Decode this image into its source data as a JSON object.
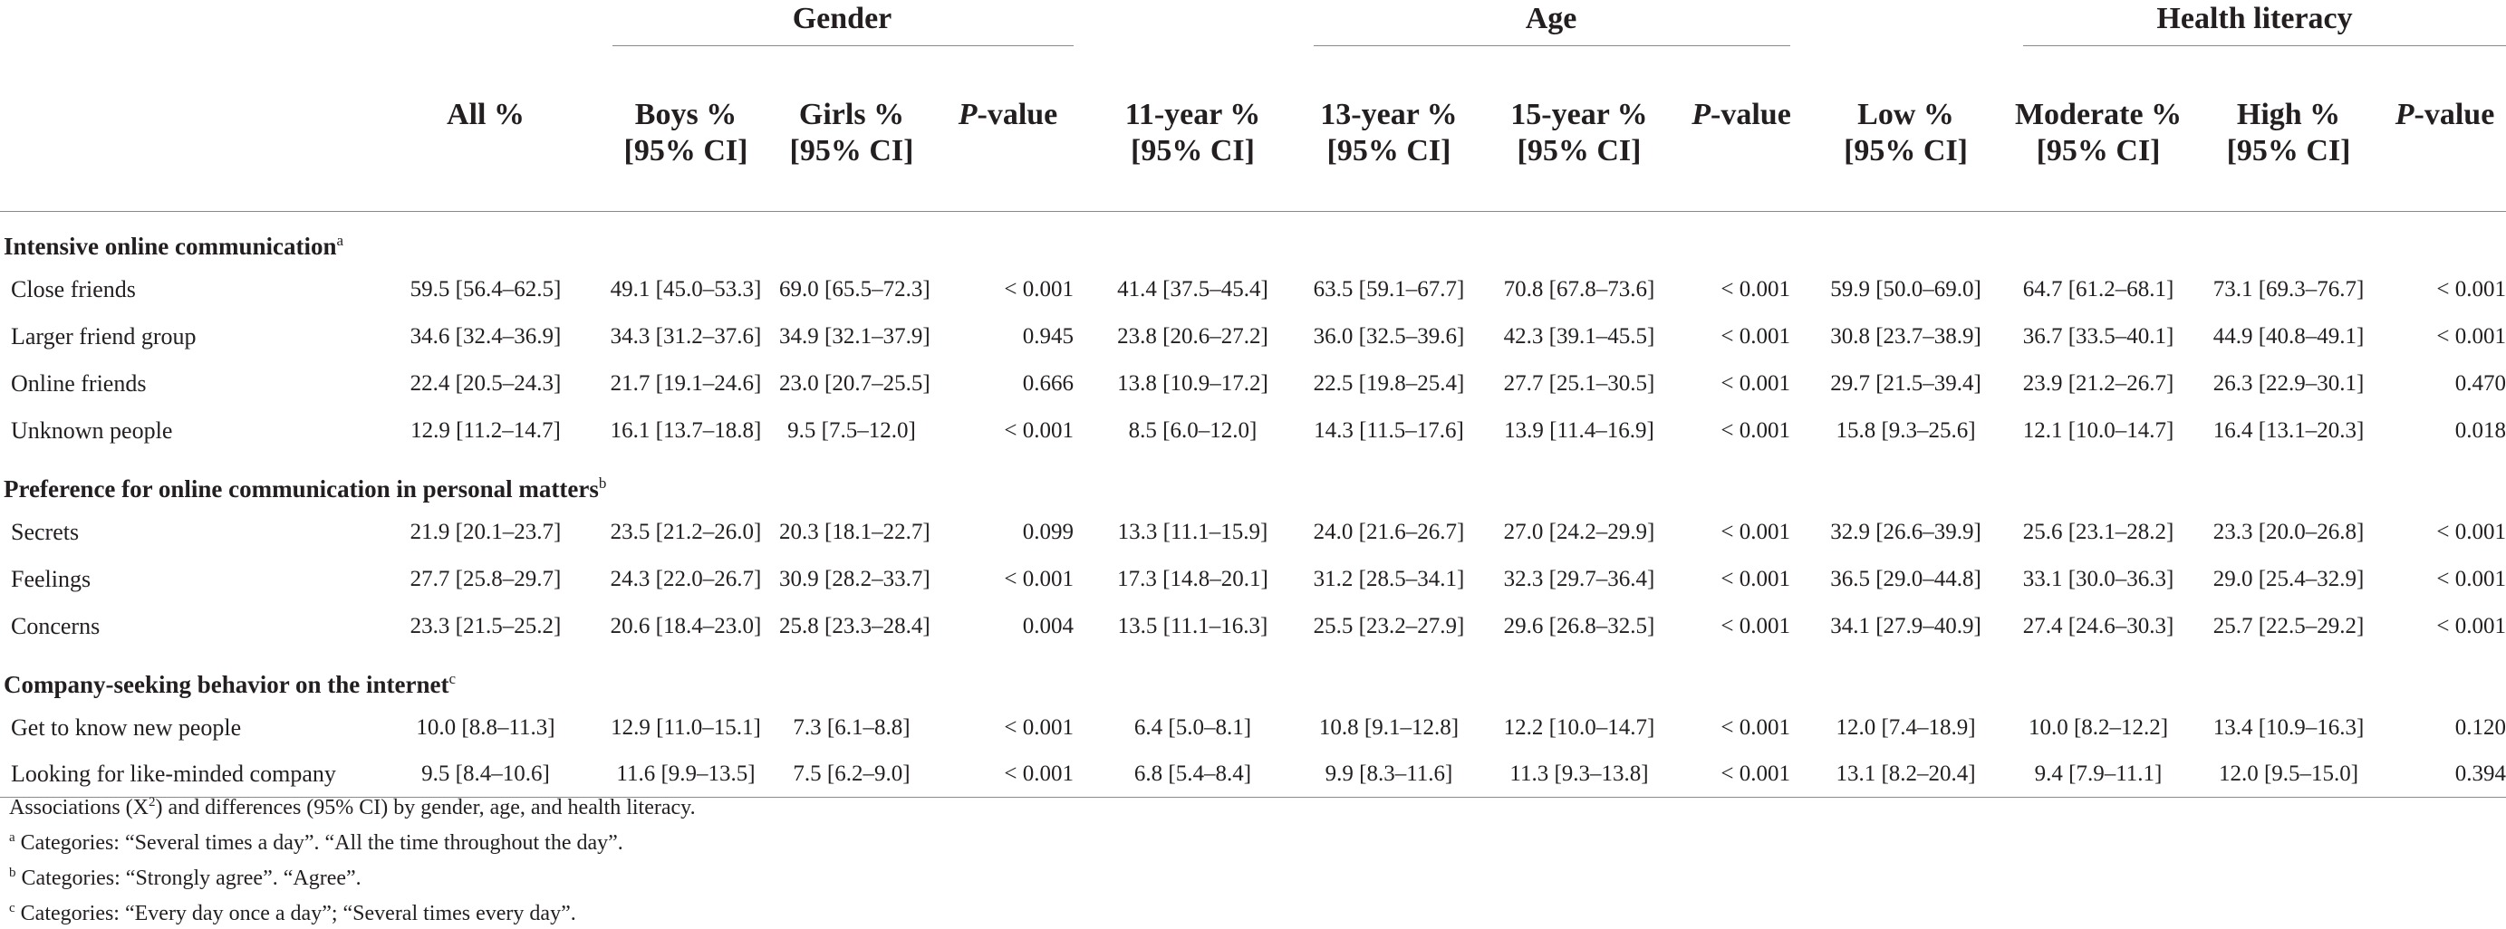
{
  "groups": {
    "gender": "Gender",
    "age": "Age",
    "health_literacy": "Health literacy"
  },
  "columns": {
    "all": "All %",
    "boys": [
      "Boys %",
      "[95% CI]"
    ],
    "girls": [
      "Girls %",
      "[95% CI]"
    ],
    "p_gender": [
      "P",
      "-value"
    ],
    "y11": [
      "11-year %",
      "[95% CI]"
    ],
    "y13": [
      "13-year %",
      "[95% CI]"
    ],
    "y15": [
      "15-year %",
      "[95% CI]"
    ],
    "p_age": [
      "P",
      "-value"
    ],
    "low": [
      "Low %",
      "[95% CI]"
    ],
    "moderate": [
      "Moderate %",
      "[95% CI]"
    ],
    "high": [
      "High %",
      "[95% CI]"
    ],
    "p_hl": [
      "P",
      "-value"
    ]
  },
  "sections": [
    {
      "title": "Intensive online communication",
      "note": "a",
      "rows": [
        {
          "label": "Close friends",
          "cells": [
            "59.5 [56.4–62.5]",
            "49.1 [45.0–53.3]",
            "69.0 [65.5–72.3]",
            "< 0.001",
            "41.4 [37.5–45.4]",
            "63.5 [59.1–67.7]",
            "70.8 [67.8–73.6]",
            "< 0.001",
            "59.9 [50.0–69.0]",
            "64.7 [61.2–68.1]",
            "73.1 [69.3–76.7]",
            "< 0.001"
          ]
        },
        {
          "label": "Larger friend group",
          "cells": [
            "34.6 [32.4–36.9]",
            "34.3 [31.2–37.6]",
            "34.9 [32.1–37.9]",
            "0.945",
            "23.8 [20.6–27.2]",
            "36.0 [32.5–39.6]",
            "42.3 [39.1–45.5]",
            "< 0.001",
            "30.8 [23.7–38.9]",
            "36.7 [33.5–40.1]",
            "44.9 [40.8–49.1]",
            "< 0.001"
          ]
        },
        {
          "label": "Online friends",
          "cells": [
            "22.4 [20.5–24.3]",
            "21.7 [19.1–24.6]",
            "23.0 [20.7–25.5]",
            "0.666",
            "13.8 [10.9–17.2]",
            "22.5 [19.8–25.4]",
            "27.7 [25.1–30.5]",
            "< 0.001",
            "29.7 [21.5–39.4]",
            "23.9 [21.2–26.7]",
            "26.3 [22.9–30.1]",
            "0.470"
          ]
        },
        {
          "label": "Unknown people",
          "cells": [
            "12.9 [11.2–14.7]",
            "16.1 [13.7–18.8]",
            "9.5 [7.5–12.0]",
            "< 0.001",
            "8.5 [6.0–12.0]",
            "14.3 [11.5–17.6]",
            "13.9 [11.4–16.9]",
            "< 0.001",
            "15.8 [9.3–25.6]",
            "12.1 [10.0–14.7]",
            "16.4 [13.1–20.3]",
            "0.018"
          ]
        }
      ]
    },
    {
      "title": "Preference for online communication in personal matters",
      "note": "b",
      "rows": [
        {
          "label": "Secrets",
          "cells": [
            "21.9 [20.1–23.7]",
            "23.5 [21.2–26.0]",
            "20.3 [18.1–22.7]",
            "0.099",
            "13.3 [11.1–15.9]",
            "24.0 [21.6–26.7]",
            "27.0 [24.2–29.9]",
            "< 0.001",
            "32.9 [26.6–39.9]",
            "25.6 [23.1–28.2]",
            "23.3 [20.0–26.8]",
            "< 0.001"
          ]
        },
        {
          "label": "Feelings",
          "cells": [
            "27.7 [25.8–29.7]",
            "24.3 [22.0–26.7]",
            "30.9 [28.2–33.7]",
            "< 0.001",
            "17.3 [14.8–20.1]",
            "31.2 [28.5–34.1]",
            "32.3 [29.7–36.4]",
            "< 0.001",
            "36.5 [29.0–44.8]",
            "33.1 [30.0–36.3]",
            "29.0 [25.4–32.9]",
            "< 0.001"
          ]
        },
        {
          "label": "Concerns",
          "cells": [
            "23.3 [21.5–25.2]",
            "20.6 [18.4–23.0]",
            "25.8 [23.3–28.4]",
            "0.004",
            "13.5 [11.1–16.3]",
            "25.5 [23.2–27.9]",
            "29.6 [26.8–32.5]",
            "< 0.001",
            "34.1 [27.9–40.9]",
            "27.4 [24.6–30.3]",
            "25.7 [22.5–29.2]",
            "< 0.001"
          ]
        }
      ]
    },
    {
      "title": "Company-seeking behavior on the internet",
      "note": "c",
      "rows": [
        {
          "label": "Get to know new people",
          "cells": [
            "10.0 [8.8–11.3]",
            "12.9 [11.0–15.1]",
            "7.3 [6.1–8.8]",
            "< 0.001",
            "6.4 [5.0–8.1]",
            "10.8 [9.1–12.8]",
            "12.2 [10.0–14.7]",
            "< 0.001",
            "12.0 [7.4–18.9]",
            "10.0 [8.2–12.2]",
            "13.4 [10.9–16.3]",
            "0.120"
          ]
        },
        {
          "label": "Looking for like-minded company",
          "cells": [
            "9.5 [8.4–10.6]",
            "11.6 [9.9–13.5]",
            "7.5 [6.2–9.0]",
            "< 0.001",
            "6.8 [5.4–8.4]",
            "9.9 [8.3–11.6]",
            "11.3 [9.3–13.8]",
            "< 0.001",
            "13.1 [8.2–20.4]",
            "9.4 [7.9–11.1]",
            "12.0 [9.5–15.0]",
            "0.394"
          ]
        }
      ]
    }
  ],
  "footnotes": {
    "main": {
      "pre": "Associations (X",
      "sup": "2",
      "post": ") and differences (95% CI) by gender, age, and health literacy."
    },
    "a": {
      "mark": "a",
      "text": "Categories: “Several times a day”. “All the time throughout the day”."
    },
    "b": {
      "mark": "b",
      "text": "Categories: “Strongly agree”. “Agree”."
    },
    "c": {
      "mark": "c",
      "text": "Categories: “Every day once a day”; “Several times every day”."
    }
  }
}
